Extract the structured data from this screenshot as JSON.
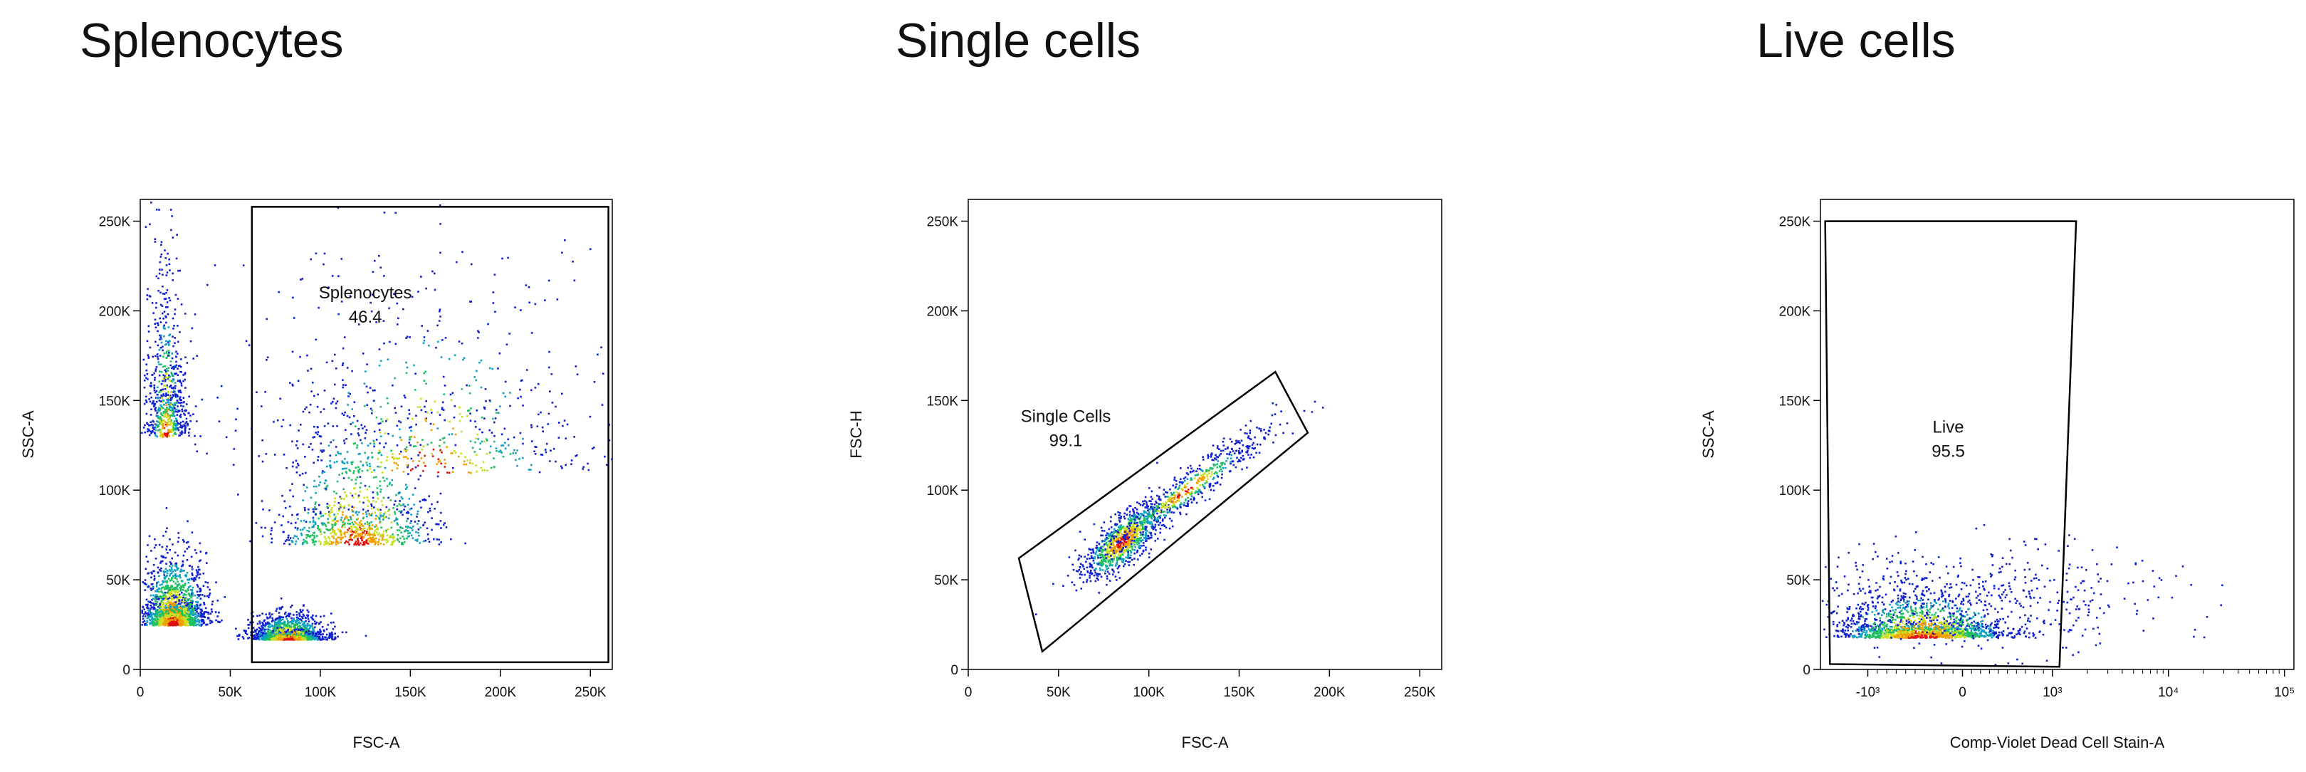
{
  "chart_data": [
    {
      "type": "scatter",
      "title": "Splenocytes",
      "xlabel": "FSC-A",
      "ylabel": "SSC-A",
      "xlim": [
        0,
        262144
      ],
      "ylim": [
        0,
        262144
      ],
      "x_ticks": [
        "0",
        "50K",
        "100K",
        "150K",
        "200K",
        "250K"
      ],
      "x_tick_values": [
        0,
        50000,
        100000,
        150000,
        200000,
        250000
      ],
      "y_ticks": [
        "0",
        "50K",
        "100K",
        "150K",
        "200K",
        "250K"
      ],
      "y_tick_values": [
        0,
        50000,
        100000,
        150000,
        200000,
        250000
      ],
      "gate": {
        "name": "Splenocytes",
        "percent": "46.4",
        "polygon": [
          [
            62000,
            4000
          ],
          [
            62000,
            258000
          ],
          [
            260000,
            258000
          ],
          [
            260000,
            4000
          ]
        ]
      },
      "populations": [
        {
          "cx": 18000,
          "cy": 25000,
          "sx": 9000,
          "sy": 20000,
          "n": 1600
        },
        {
          "cx": 14000,
          "cy": 130000,
          "sx": 6000,
          "sy": 60000,
          "n": 700
        },
        {
          "cx": 82000,
          "cy": 17000,
          "sx": 10000,
          "sy": 7000,
          "n": 1500
        },
        {
          "cx": 120000,
          "cy": 70000,
          "sx": 22000,
          "sy": 32000,
          "n": 900
        },
        {
          "cx": 160000,
          "cy": 110000,
          "sx": 55000,
          "sy": 70000,
          "n": 700
        }
      ]
    },
    {
      "type": "scatter",
      "title": "Single cells",
      "xlabel": "FSC-A",
      "ylabel": "FSC-H",
      "xlim": [
        0,
        262144
      ],
      "ylim": [
        0,
        262144
      ],
      "x_ticks": [
        "0",
        "50K",
        "100K",
        "150K",
        "200K",
        "250K"
      ],
      "x_tick_values": [
        0,
        50000,
        100000,
        150000,
        200000,
        250000
      ],
      "y_ticks": [
        "0",
        "50K",
        "100K",
        "150K",
        "200K",
        "250K"
      ],
      "y_tick_values": [
        0,
        50000,
        100000,
        150000,
        200000,
        250000
      ],
      "gate": {
        "name": "Single Cells",
        "percent": "99.1",
        "polygon": [
          [
            28000,
            62000
          ],
          [
            170000,
            166000
          ],
          [
            188000,
            132000
          ],
          [
            41000,
            10000
          ]
        ]
      },
      "populations": [
        {
          "cx": 85000,
          "cy": 72000,
          "sx": 10000,
          "sy": 7000,
          "n": 900,
          "slope": 0.72
        },
        {
          "cx": 120000,
          "cy": 100000,
          "sx": 25000,
          "sy": 6000,
          "n": 600,
          "slope": 0.72
        }
      ]
    },
    {
      "type": "scatter",
      "title": "Live cells",
      "xlabel": "Comp-Violet Dead Cell Stain-A",
      "ylabel": "SSC-A",
      "x_scale": "biexponential",
      "ylim": [
        0,
        262144
      ],
      "x_ticks": [
        "-10³",
        "0",
        "10³",
        "10⁴",
        "10⁵"
      ],
      "y_ticks": [
        "0",
        "50K",
        "100K",
        "150K",
        "200K",
        "250K"
      ],
      "y_tick_values": [
        0,
        50000,
        100000,
        150000,
        200000,
        250000
      ],
      "gate": {
        "name": "Live",
        "percent": "95.5"
      },
      "populations": [
        {
          "n": 1500
        },
        {
          "n": 500
        }
      ]
    }
  ]
}
